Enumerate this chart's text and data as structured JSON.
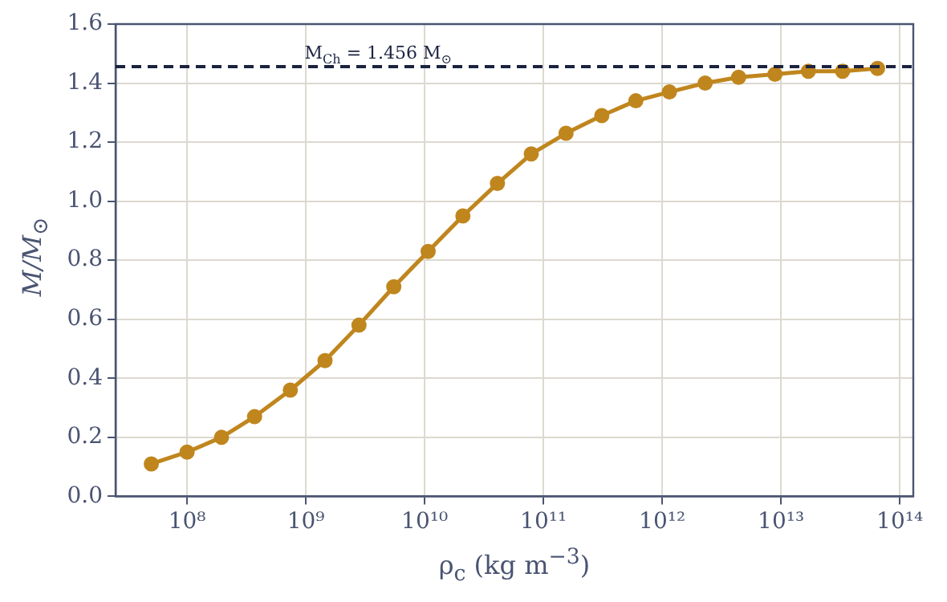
{
  "chart_data": {
    "type": "line",
    "xlabel": "ρ$_{c}$  (kg m$^{−3}$)",
    "ylabel": "M/M$_{⊙}$",
    "log": "x",
    "x": [
      50000000.0,
      100000000.0,
      195000000.0,
      370000000.0,
      740000000.0,
      1450000000.0,
      2800000000.0,
      5500000000.0,
      10700000000.0,
      21000000000.0,
      41000000000.0,
      79000000000.0,
      155000000000.0,
      310000000000.0,
      600000000000.0,
      1150000000000.0,
      2300000000000.0,
      4400000000000.0,
      8900000000000.0,
      17000000000000.0,
      33000000000000.0,
      65000000000000.0
    ],
    "series": [
      {
        "color": "#c0861e",
        "values": [
          0.11,
          0.15,
          0.2,
          0.27,
          0.36,
          0.46,
          0.58,
          0.71,
          0.83,
          0.95,
          1.06,
          1.16,
          1.23,
          1.29,
          1.34,
          1.37,
          1.4,
          1.42,
          1.43,
          1.44,
          1.44,
          1.45
        ]
      }
    ],
    "xlim": [
      25000000.0,
      130000000000000.0
    ],
    "xticks": [
      {
        "value": 100000000.0,
        "label": "10⁸"
      },
      {
        "value": 1000000000.0,
        "label": "10⁹"
      },
      {
        "value": 10000000000.0,
        "label": "10¹⁰"
      },
      {
        "value": 100000000000.0,
        "label": "10¹¹"
      },
      {
        "value": 1000000000000.0,
        "label": "10¹²"
      },
      {
        "value": 10000000000000.0,
        "label": "10¹³"
      },
      {
        "value": 100000000000000.0,
        "label": "10¹⁴"
      }
    ],
    "ylim": [
      0,
      1.6
    ],
    "yticks": [
      {
        "value": 0,
        "label": "0.0"
      },
      {
        "value": 0.2,
        "label": "0.2"
      },
      {
        "value": 0.4,
        "label": "0.4"
      },
      {
        "value": 0.6,
        "label": "0.6"
      },
      {
        "value": 0.8,
        "label": "0.8"
      },
      {
        "value": 1,
        "label": "1.0"
      },
      {
        "value": 1.2,
        "label": "1.2"
      },
      {
        "value": 1.4,
        "label": "1.4"
      },
      {
        "value": 1.6,
        "label": "1.6"
      }
    ],
    "ref_lines": [
      {
        "axis": "y",
        "value": 1.456,
        "label": "M$_{Ch}$ = 1.456 M$_{⊙}$",
        "color": "#1b2340",
        "line_style": "dashed"
      }
    ],
    "grid": true,
    "marker": "circle",
    "line_style": "solid",
    "legend": false
  }
}
